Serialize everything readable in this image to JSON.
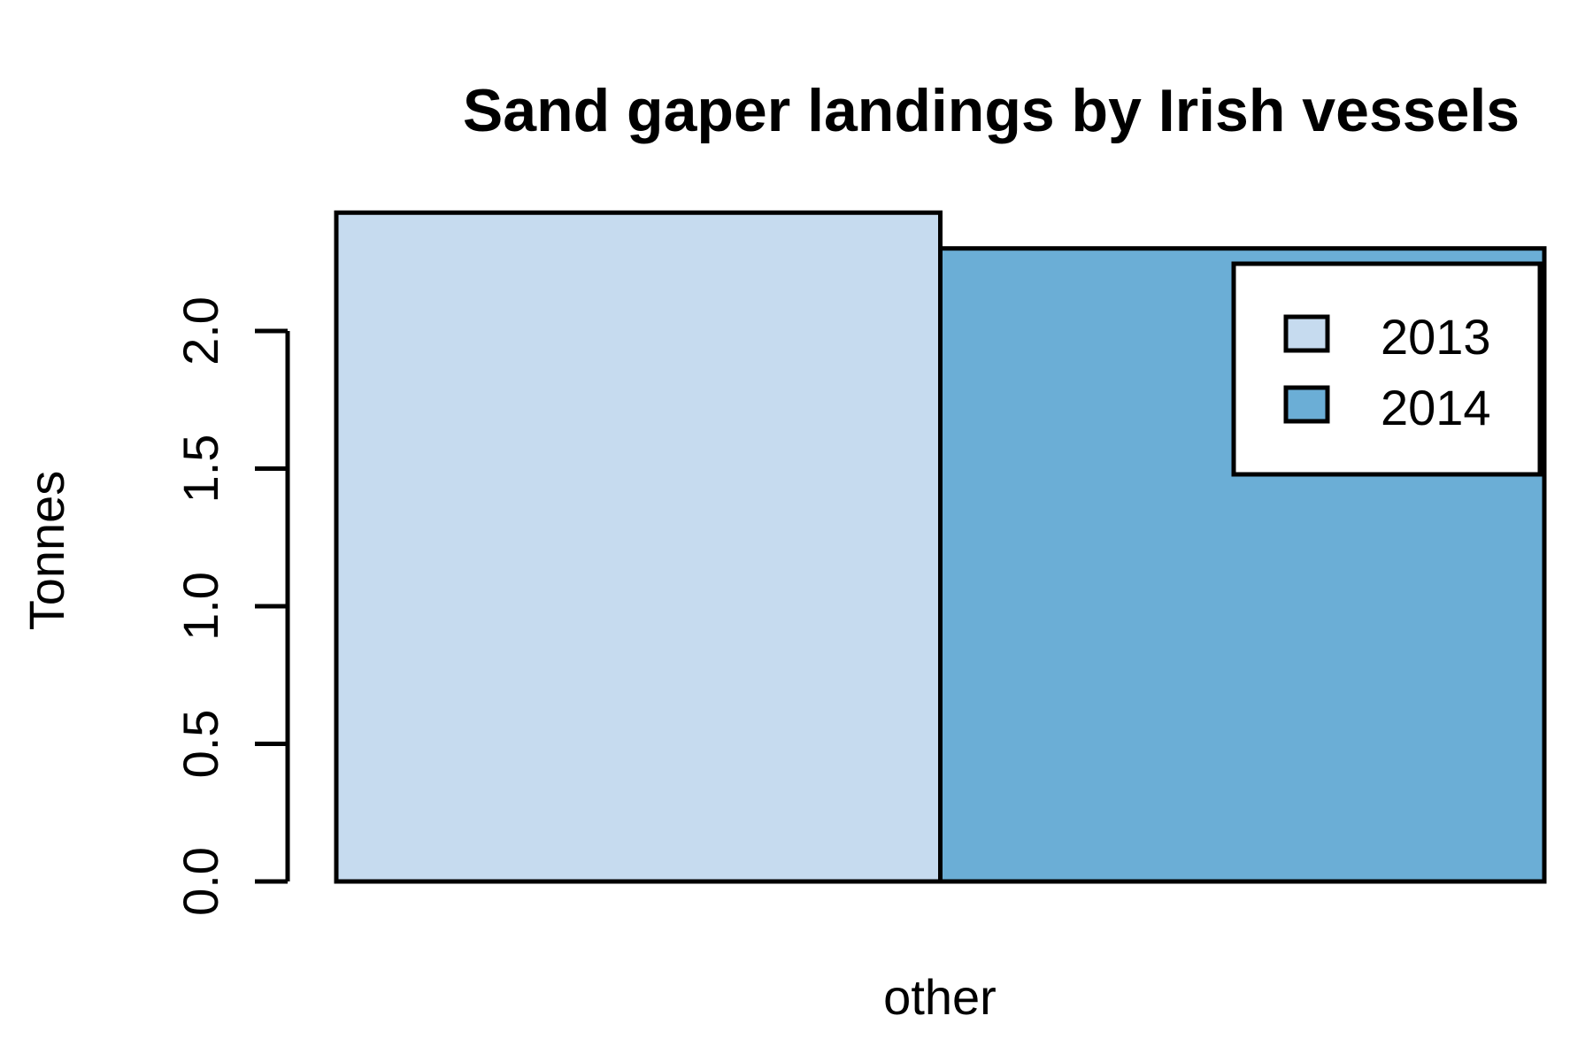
{
  "chart_data": {
    "type": "bar",
    "title": "Sand gaper landings by Irish vessels",
    "xlabel": "",
    "ylabel": "Tonnes",
    "categories": [
      "other"
    ],
    "series": [
      {
        "name": "2013",
        "values": [
          2.43
        ],
        "color": "#c6dbef"
      },
      {
        "name": "2014",
        "values": [
          2.3
        ],
        "color": "#6baed6"
      }
    ],
    "y_ticks": [
      "0.0",
      "0.5",
      "1.0",
      "1.5",
      "2.0"
    ],
    "y_tick_values": [
      0.0,
      0.5,
      1.0,
      1.5,
      2.0
    ],
    "ylim": [
      0,
      2.5
    ],
    "grid": false,
    "legend": {
      "placement": "top-right",
      "entries": [
        "2013",
        "2014"
      ]
    }
  }
}
